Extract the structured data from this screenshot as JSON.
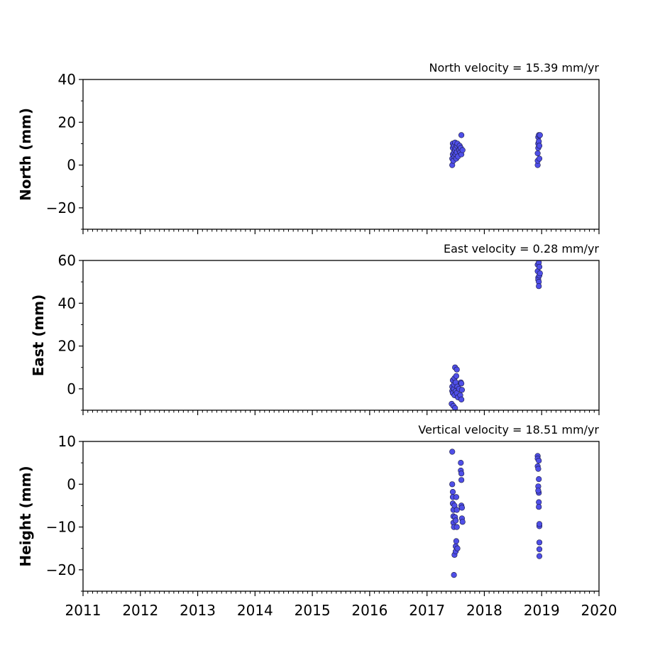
{
  "chart_data": [
    {
      "type": "scatter",
      "title": "North velocity = 15.39 mm/yr",
      "ylabel": "North (mm)",
      "xlim": [
        2011,
        2020
      ],
      "ylim": [
        -30,
        40
      ],
      "yticks": [
        40,
        20,
        0,
        -20
      ],
      "ytick_labels": [
        "40",
        "20",
        "0",
        "−20"
      ],
      "marker_color": "#4f4fe8",
      "points": [
        [
          2017.44,
          0
        ],
        [
          2017.44,
          3
        ],
        [
          2017.45,
          5
        ],
        [
          2017.45,
          8
        ],
        [
          2017.45,
          10
        ],
        [
          2017.46,
          2
        ],
        [
          2017.47,
          6
        ],
        [
          2017.47,
          9
        ],
        [
          2017.48,
          4
        ],
        [
          2017.49,
          7
        ],
        [
          2017.49,
          10.5
        ],
        [
          2017.5,
          5
        ],
        [
          2017.5,
          8
        ],
        [
          2017.51,
          3
        ],
        [
          2017.52,
          9
        ],
        [
          2017.52,
          6
        ],
        [
          2017.53,
          10
        ],
        [
          2017.54,
          4
        ],
        [
          2017.56,
          7
        ],
        [
          2017.57,
          9
        ],
        [
          2017.58,
          6
        ],
        [
          2017.59,
          8
        ],
        [
          2017.6,
          5
        ],
        [
          2017.6,
          14
        ],
        [
          2017.62,
          7
        ],
        [
          2018.93,
          0
        ],
        [
          2018.93,
          2
        ],
        [
          2018.93,
          5.5
        ],
        [
          2018.94,
          8
        ],
        [
          2018.94,
          10
        ],
        [
          2018.94,
          13
        ],
        [
          2018.95,
          14
        ],
        [
          2018.95,
          11
        ],
        [
          2018.96,
          3
        ],
        [
          2018.96,
          9
        ],
        [
          2018.97,
          14
        ]
      ]
    },
    {
      "type": "scatter",
      "title": "East velocity = 0.28 mm/yr",
      "ylabel": "East (mm)",
      "xlim": [
        2011,
        2020
      ],
      "ylim": [
        -10,
        60
      ],
      "yticks": [
        60,
        40,
        20,
        0
      ],
      "ytick_labels": [
        "60",
        "40",
        "20",
        "0"
      ],
      "marker_color": "#4f4fe8",
      "points": [
        [
          2017.43,
          -7
        ],
        [
          2017.44,
          -1
        ],
        [
          2017.44,
          1
        ],
        [
          2017.45,
          -2
        ],
        [
          2017.45,
          4
        ],
        [
          2017.46,
          -8
        ],
        [
          2017.47,
          0
        ],
        [
          2017.47,
          2
        ],
        [
          2017.48,
          -3
        ],
        [
          2017.48,
          5
        ],
        [
          2017.49,
          -9
        ],
        [
          2017.49,
          10
        ],
        [
          2017.5,
          -1
        ],
        [
          2017.5,
          3
        ],
        [
          2017.51,
          6
        ],
        [
          2017.52,
          9
        ],
        [
          2017.52,
          -2
        ],
        [
          2017.53,
          1
        ],
        [
          2017.54,
          -4
        ],
        [
          2017.56,
          0
        ],
        [
          2017.58,
          -3
        ],
        [
          2017.59,
          3
        ],
        [
          2017.6,
          2.5
        ],
        [
          2017.6,
          -5
        ],
        [
          2017.61,
          -0.5
        ],
        [
          2018.93,
          58
        ],
        [
          2018.93,
          55
        ],
        [
          2018.94,
          52
        ],
        [
          2018.94,
          51
        ],
        [
          2018.95,
          50
        ],
        [
          2018.95,
          48
        ],
        [
          2018.95,
          59
        ],
        [
          2018.96,
          57
        ],
        [
          2018.96,
          53
        ],
        [
          2018.97,
          54
        ]
      ]
    },
    {
      "type": "scatter",
      "title": "Vertical velocity = 18.51 mm/yr",
      "ylabel": "Height (mm)",
      "xlim": [
        2011,
        2020
      ],
      "ylim": [
        -25,
        10
      ],
      "yticks": [
        10,
        0,
        -10,
        -20
      ],
      "ytick_labels": [
        "10",
        "0",
        "−10",
        "−20"
      ],
      "xticks": [
        2011,
        2012,
        2013,
        2014,
        2015,
        2016,
        2017,
        2018,
        2019,
        2020
      ],
      "xtick_labels": [
        "2011",
        "2012",
        "2013",
        "2014",
        "2015",
        "2016",
        "2017",
        "2018",
        "2019",
        "2020"
      ],
      "marker_color": "#4f4fe8",
      "points": [
        [
          2017.44,
          7.6
        ],
        [
          2017.44,
          0
        ],
        [
          2017.45,
          -1.8
        ],
        [
          2017.45,
          -3
        ],
        [
          2017.45,
          -4.5
        ],
        [
          2017.46,
          -6
        ],
        [
          2017.46,
          -7.5
        ],
        [
          2017.46,
          -9
        ],
        [
          2017.47,
          -10
        ],
        [
          2017.47,
          -21.2
        ],
        [
          2017.48,
          -16.5
        ],
        [
          2017.48,
          -5
        ],
        [
          2017.49,
          -7.7
        ],
        [
          2017.5,
          -8.5
        ],
        [
          2017.5,
          -14.5
        ],
        [
          2017.5,
          -15.7
        ],
        [
          2017.51,
          -13.3
        ],
        [
          2017.51,
          -3
        ],
        [
          2017.52,
          -6
        ],
        [
          2017.52,
          -10
        ],
        [
          2017.53,
          -15
        ],
        [
          2017.59,
          5
        ],
        [
          2017.59,
          3.2
        ],
        [
          2017.6,
          2.5
        ],
        [
          2017.6,
          1
        ],
        [
          2017.6,
          -5
        ],
        [
          2017.61,
          -5.5
        ],
        [
          2017.61,
          -8
        ],
        [
          2017.62,
          -8.8
        ],
        [
          2018.93,
          6.6
        ],
        [
          2018.93,
          6
        ],
        [
          2018.93,
          4.2
        ],
        [
          2018.94,
          3.6
        ],
        [
          2018.94,
          -0.5
        ],
        [
          2018.95,
          1.2
        ],
        [
          2018.95,
          -2
        ],
        [
          2018.95,
          -4.2
        ],
        [
          2018.95,
          -5.3
        ],
        [
          2018.96,
          -9.8
        ],
        [
          2018.96,
          -9.3
        ],
        [
          2018.96,
          -13.6
        ],
        [
          2018.96,
          -15.2
        ],
        [
          2018.96,
          -16.8
        ],
        [
          2018.95,
          5.5
        ],
        [
          2018.94,
          -1.5
        ]
      ]
    }
  ]
}
